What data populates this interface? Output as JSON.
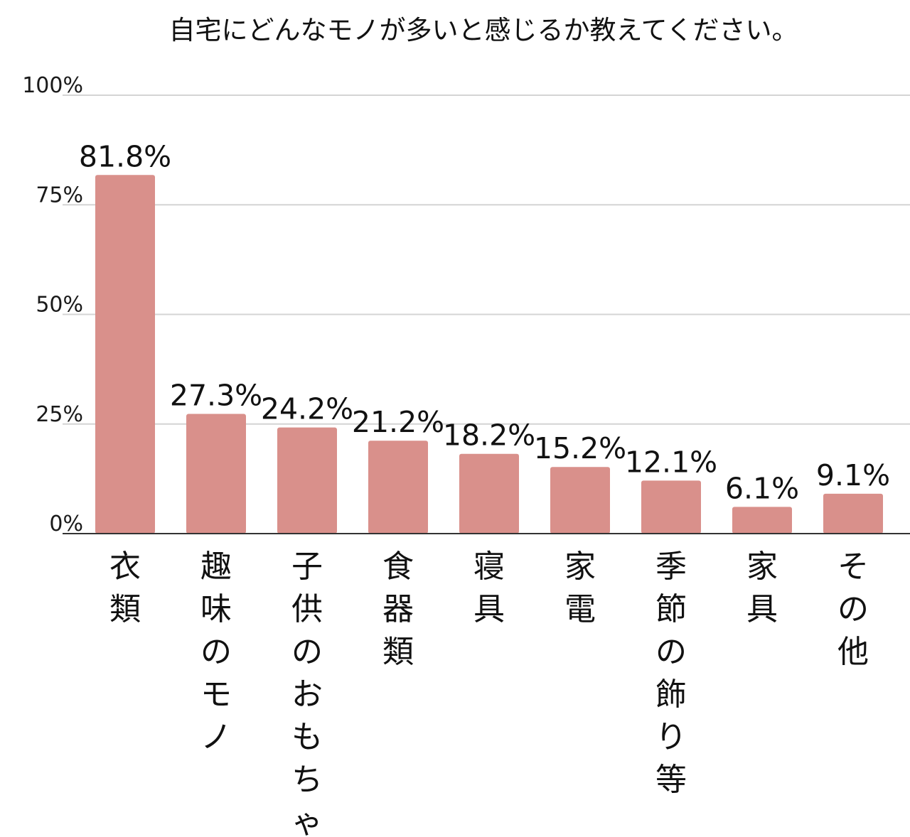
{
  "chart_data": {
    "type": "bar",
    "title": "自宅にどんなモノが多いと感じるか教えてください。",
    "xlabel": "",
    "ylabel": "",
    "ylim": [
      0,
      100
    ],
    "yticks": [
      0,
      25,
      50,
      75,
      100
    ],
    "ytick_labels": [
      "0%",
      "25%",
      "50%",
      "75%",
      "100%"
    ],
    "grid": true,
    "legend": "none",
    "categories": [
      "衣類",
      "趣味のモノ",
      "子供のおもちゃ",
      "食器類",
      "寝具",
      "家電",
      "季節の飾り等",
      "家具",
      "その他"
    ],
    "values": [
      81.8,
      27.3,
      24.2,
      21.2,
      18.2,
      15.2,
      12.1,
      6.1,
      9.1
    ],
    "value_labels": [
      "81.8%",
      "27.3%",
      "24.2%",
      "21.2%",
      "18.2%",
      "15.2%",
      "12.1%",
      "6.1%",
      "9.1%"
    ],
    "colors": {
      "bar": "#d9908b",
      "grid": "#d4d4d4",
      "axis": "#333333",
      "text": "#111111"
    }
  }
}
